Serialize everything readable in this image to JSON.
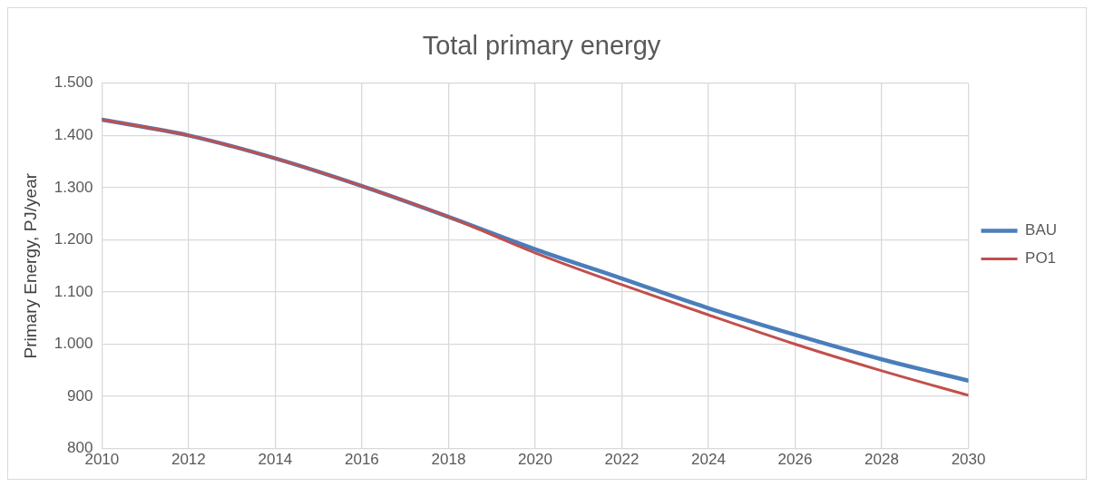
{
  "chart_data": {
    "type": "line",
    "title": "Total primary energy",
    "ylabel": "Primary Energy, PJ/year",
    "x": [
      2010,
      2012,
      2014,
      2016,
      2018,
      2020,
      2022,
      2024,
      2026,
      2028,
      2030
    ],
    "series": [
      {
        "name": "BAU",
        "color": "#4a7ebb",
        "values": [
          1430,
          1400,
          1356,
          1303,
          1244,
          1182,
          1126,
          1069,
          1018,
          971,
          930
        ]
      },
      {
        "name": "PO1",
        "color": "#c0504d",
        "values": [
          1430,
          1400,
          1356,
          1303,
          1244,
          1175,
          1114,
          1056,
          1000,
          949,
          902
        ]
      }
    ],
    "xlim": [
      2010,
      2030
    ],
    "xticks": [
      2010,
      2012,
      2014,
      2016,
      2018,
      2020,
      2022,
      2024,
      2026,
      2028,
      2030
    ],
    "ylim": [
      800,
      1500
    ],
    "yticks": [
      800,
      900,
      {
        "value": 1000,
        "label": "1.000"
      },
      {
        "value": 1100,
        "label": "1.100"
      },
      {
        "value": 1200,
        "label": "1.200"
      },
      {
        "value": 1300,
        "label": "1.300"
      },
      {
        "value": 1400,
        "label": "1.400"
      },
      {
        "value": 1500,
        "label": "1.500"
      }
    ],
    "grid": true,
    "legend": "right",
    "marker": "none",
    "line_style": "solid"
  }
}
